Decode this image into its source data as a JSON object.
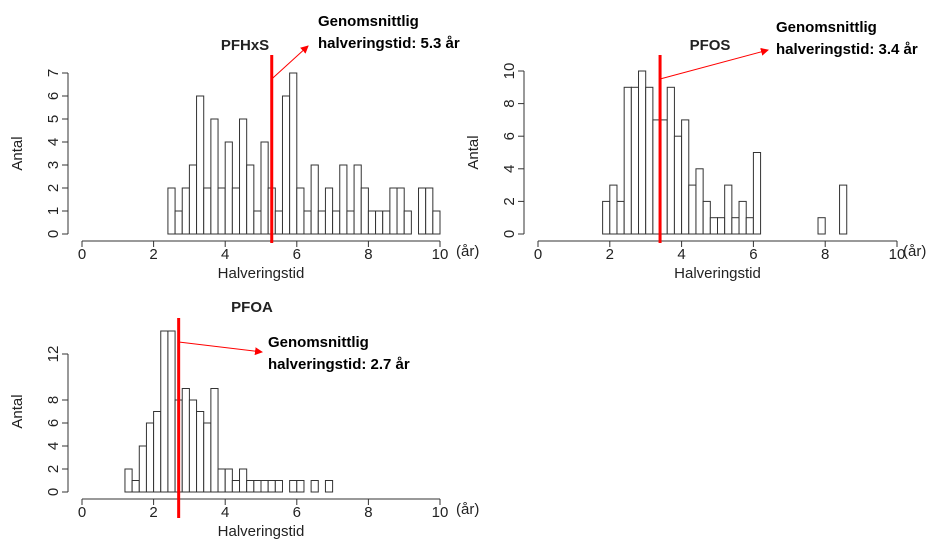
{
  "chart_data": [
    {
      "type": "histogram",
      "title": "PFHxS",
      "xlabel": "Halveringstid",
      "ylabel": "Antal",
      "x_unit": "(år)",
      "bins": [
        2.4,
        2.6,
        2.8,
        3.0,
        3.2,
        3.4,
        3.6,
        3.8,
        4.0,
        4.2,
        4.4,
        4.6,
        4.8,
        5.0,
        5.2,
        5.4,
        5.6,
        5.8,
        6.0,
        6.2,
        6.4,
        6.6,
        6.8,
        7.0,
        7.2,
        7.4,
        7.6,
        7.8,
        8.0,
        8.2,
        8.4,
        8.6,
        8.8,
        9.0,
        9.2,
        9.4,
        9.6,
        9.8,
        10.0
      ],
      "values": [
        2,
        1,
        2,
        3,
        6,
        2,
        5,
        2,
        4,
        2,
        5,
        3,
        1,
        4,
        2,
        1,
        6,
        7,
        2,
        1,
        3,
        1,
        2,
        1,
        3,
        1,
        3,
        2,
        1,
        1,
        1,
        2,
        2,
        1,
        0,
        2,
        2,
        1
      ],
      "color": "#ffffff",
      "xlim": [
        0,
        10
      ],
      "xticks": [
        0,
        2,
        4,
        6,
        8,
        10
      ],
      "ylim": [
        0,
        7
      ],
      "yticks": [
        0,
        1,
        2,
        3,
        4,
        5,
        6,
        7
      ],
      "mean": 5.3,
      "mean_color": "#ff0000",
      "annotation": [
        "Genomsnittlig",
        "halveringstid: 5.3 år"
      ]
    },
    {
      "type": "histogram",
      "title": "PFOS",
      "xlabel": "Halveringstid",
      "ylabel": "Antal",
      "x_unit": "(år)",
      "bins": [
        1.8,
        2.0,
        2.2,
        2.4,
        2.6,
        2.8,
        3.0,
        3.2,
        3.4,
        3.6,
        3.8,
        4.0,
        4.2,
        4.4,
        4.6,
        4.8,
        5.0,
        5.2,
        5.4,
        5.6,
        5.8,
        6.0,
        6.2,
        6.4,
        6.6,
        6.8,
        7.0,
        7.2,
        7.4,
        7.6,
        7.8,
        8.0,
        8.2,
        8.4,
        8.6
      ],
      "values": [
        2,
        3,
        2,
        9,
        9,
        10,
        9,
        7,
        7,
        9,
        6,
        7,
        3,
        4,
        2,
        1,
        1,
        3,
        1,
        2,
        1,
        5,
        0,
        0,
        0,
        0,
        0,
        0,
        0,
        0,
        1,
        0,
        0,
        3
      ],
      "color": "#ffffff",
      "xlim": [
        0,
        10
      ],
      "xticks": [
        0,
        2,
        4,
        6,
        8,
        10
      ],
      "ylim": [
        0,
        10
      ],
      "yticks": [
        0,
        2,
        4,
        6,
        8,
        10
      ],
      "mean": 3.4,
      "mean_color": "#ff0000",
      "annotation": [
        "Genomsnittlig",
        "halveringstid: 3.4 år"
      ]
    },
    {
      "type": "histogram",
      "title": "PFOA",
      "xlabel": "Halveringstid",
      "ylabel": "Antal",
      "x_unit": "(år)",
      "bins": [
        1.2,
        1.4,
        1.6,
        1.8,
        2.0,
        2.2,
        2.4,
        2.6,
        2.8,
        3.0,
        3.2,
        3.4,
        3.6,
        3.8,
        4.0,
        4.2,
        4.4,
        4.6,
        4.8,
        5.0,
        5.2,
        5.4,
        5.6,
        5.8,
        6.0,
        6.2,
        6.4,
        6.6,
        6.8,
        7.0
      ],
      "values": [
        2,
        1,
        4,
        6,
        7,
        14,
        14,
        8,
        9,
        8,
        7,
        6,
        9,
        2,
        2,
        1,
        2,
        1,
        1,
        1,
        1,
        1,
        0,
        1,
        1,
        0,
        1,
        0,
        1
      ],
      "color": "#ffffff",
      "xlim": [
        0,
        10
      ],
      "xticks": [
        0,
        2,
        4,
        6,
        8,
        10
      ],
      "ylim": [
        0,
        14
      ],
      "yticks": [
        0,
        2,
        4,
        6,
        8,
        12
      ],
      "mean": 2.7,
      "mean_color": "#ff0000",
      "annotation": [
        "Genomsnittlig",
        "halveringstid: 2.7 år"
      ]
    }
  ]
}
